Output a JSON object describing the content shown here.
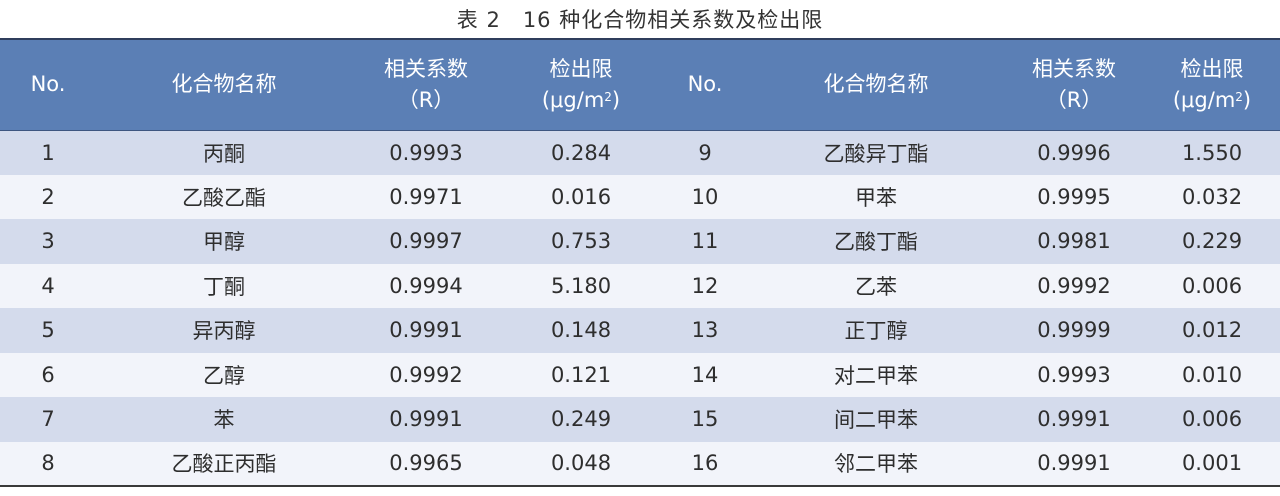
{
  "caption": {
    "number": "表 2",
    "title": "16 种化合物相关系数及检出限"
  },
  "headers": {
    "no": "No.",
    "name": "化合物名称",
    "r_line1": "相关系数",
    "r_line2": "（R）",
    "lod_line1": "检出限",
    "lod_unit_base": "(μg/m",
    "lod_unit_sup": "2",
    "lod_unit_close": ")"
  },
  "rows": [
    {
      "left": {
        "no": "1",
        "name": "丙酮",
        "r": "0.9993",
        "lod": "0.284"
      },
      "right": {
        "no": "9",
        "name": "乙酸异丁酯",
        "r": "0.9996",
        "lod": "1.550"
      }
    },
    {
      "left": {
        "no": "2",
        "name": "乙酸乙酯",
        "r": "0.9971",
        "lod": "0.016"
      },
      "right": {
        "no": "10",
        "name": "甲苯",
        "r": "0.9995",
        "lod": "0.032"
      }
    },
    {
      "left": {
        "no": "3",
        "name": "甲醇",
        "r": "0.9997",
        "lod": "0.753"
      },
      "right": {
        "no": "11",
        "name": "乙酸丁酯",
        "r": "0.9981",
        "lod": "0.229"
      }
    },
    {
      "left": {
        "no": "4",
        "name": "丁酮",
        "r": "0.9994",
        "lod": "5.180"
      },
      "right": {
        "no": "12",
        "name": "乙苯",
        "r": "0.9992",
        "lod": "0.006"
      }
    },
    {
      "left": {
        "no": "5",
        "name": "异丙醇",
        "r": "0.9991",
        "lod": "0.148"
      },
      "right": {
        "no": "13",
        "name": "正丁醇",
        "r": "0.9999",
        "lod": "0.012"
      }
    },
    {
      "left": {
        "no": "6",
        "name": "乙醇",
        "r": "0.9992",
        "lod": "0.121"
      },
      "right": {
        "no": "14",
        "name": "对二甲苯",
        "r": "0.9993",
        "lod": "0.010"
      }
    },
    {
      "left": {
        "no": "7",
        "name": "苯",
        "r": "0.9991",
        "lod": "0.249"
      },
      "right": {
        "no": "15",
        "name": "间二甲苯",
        "r": "0.9991",
        "lod": "0.006"
      }
    },
    {
      "left": {
        "no": "8",
        "name": "乙酸正丙酯",
        "r": "0.9965",
        "lod": "0.048"
      },
      "right": {
        "no": "16",
        "name": "邻二甲苯",
        "r": "0.9991",
        "lod": "0.001"
      }
    }
  ],
  "colors": {
    "header_bg": "#5b7fb5",
    "row_odd_bg": "#d4dbec",
    "row_even_bg": "#f2f4fa"
  }
}
